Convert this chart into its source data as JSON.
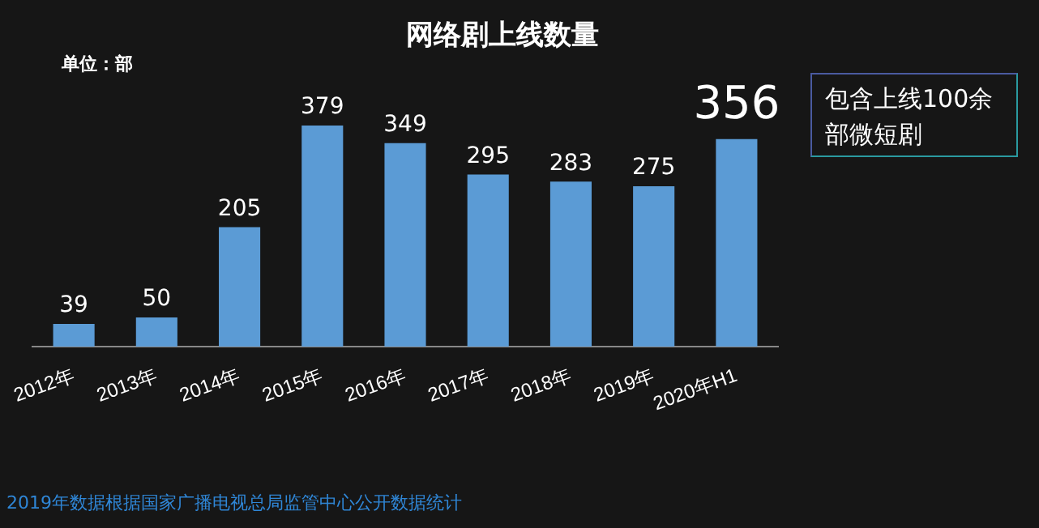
{
  "chart_data": {
    "type": "bar",
    "title": "网络剧上线数量",
    "categories": [
      "2012年",
      "2013年",
      "2014年",
      "2015年",
      "2016年",
      "2017年",
      "2018年",
      "2019年",
      "2020年H1"
    ],
    "values": [
      39,
      50,
      205,
      379,
      349,
      295,
      283,
      275,
      356
    ],
    "color": "#5b9bd5",
    "data_labels": true,
    "legend": false,
    "annotations": [
      "单位：部",
      "包含上线100余部微短剧",
      "2019年数据根据国家广播电视总局监管中心公开数据统计"
    ]
  }
}
